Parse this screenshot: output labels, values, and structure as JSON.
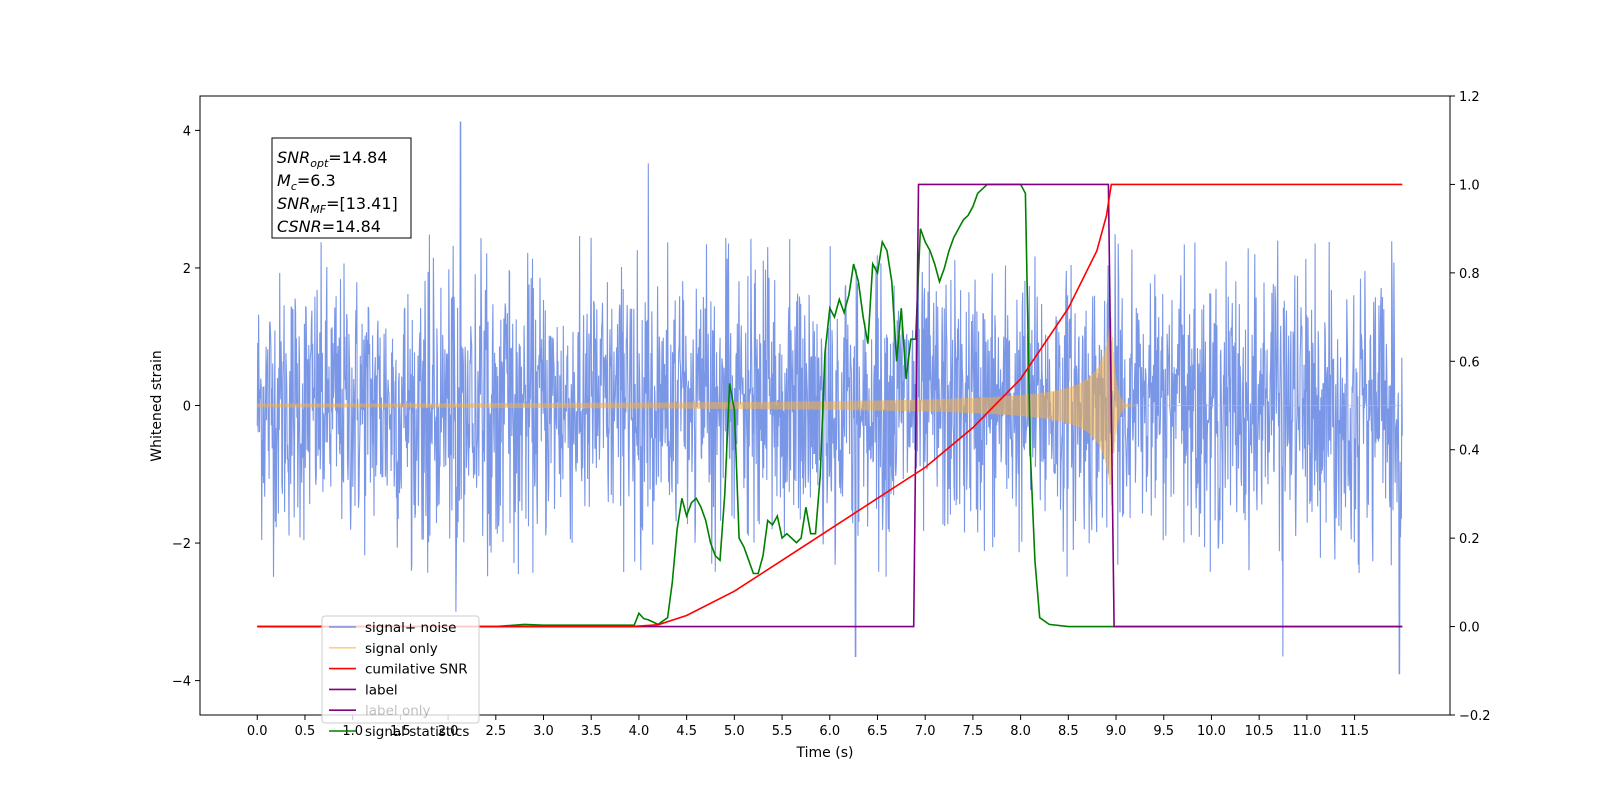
{
  "chart_data": {
    "type": "line",
    "xlabel": "Time (s)",
    "ylabel_left": "Whitened strain",
    "ylabel_right": "",
    "xlim": [
      -0.6,
      12.5
    ],
    "ylim_left": [
      -4.5,
      4.5
    ],
    "ylim_right": [
      -0.2,
      1.2
    ],
    "x_ticks": [
      "0.0",
      "0.5",
      "1.0",
      "1.5",
      "2.0",
      "2.5",
      "3.0",
      "3.5",
      "4.0",
      "4.5",
      "5.0",
      "5.5",
      "6.0",
      "6.5",
      "7.0",
      "7.5",
      "8.0",
      "8.5",
      "9.0",
      "9.5",
      "10.0",
      "10.5",
      "11.0",
      "11.5"
    ],
    "y_left_ticks": [
      "4",
      "2",
      "0",
      "−2",
      "−4"
    ],
    "y_right_ticks": [
      "1.2",
      "1.0",
      "0.8",
      "0.6",
      "0.4",
      "0.2",
      "0.0",
      "−0.2"
    ],
    "grid": false,
    "legend_position": "lower-left",
    "annotation": {
      "lines": [
        {
          "sym": "SNR",
          "sub": "opt",
          "rest": "=14.84"
        },
        {
          "sym": "M",
          "sub": "c",
          "rest": "=6.3"
        },
        {
          "sym": "SNR",
          "sub": "MF",
          "rest": "=[13.41]"
        },
        {
          "sym": "CSNR",
          "sub": "",
          "rest": "=14.84"
        }
      ]
    },
    "series": [
      {
        "name": "signal+ noise",
        "color": "#7390e6",
        "axis": "left",
        "kind": "noise",
        "x_range": [
          0,
          12.0
        ],
        "amplitude_envelope": 2.5,
        "peaks": [
          [
            2.13,
            4.12
          ],
          [
            2.08,
            -3.0
          ],
          [
            4.1,
            3.52
          ],
          [
            6.27,
            -3.65
          ],
          [
            10.75,
            -3.65
          ],
          [
            11.97,
            -3.9
          ]
        ]
      },
      {
        "name": "signal only",
        "color": "#f5b041",
        "axis": "left",
        "kind": "chirp",
        "x_range": [
          0,
          12.0
        ],
        "merger_time": 8.95,
        "peak_amplitude": 1.45
      },
      {
        "name": "cumilative SNR",
        "color": "#ff0000",
        "axis": "right",
        "x": [
          0,
          3.9,
          4.2,
          4.5,
          5.0,
          5.5,
          6.0,
          6.5,
          7.0,
          7.5,
          8.0,
          8.5,
          8.8,
          8.9,
          8.95,
          9.0,
          12.0
        ],
        "y": [
          0,
          0,
          0.004,
          0.025,
          0.08,
          0.15,
          0.22,
          0.29,
          0.36,
          0.45,
          0.56,
          0.72,
          0.85,
          0.93,
          1.0,
          1.0,
          1.0
        ]
      },
      {
        "name": "label",
        "color": "#800080",
        "axis": "right",
        "x": [
          0,
          6.88,
          6.93,
          8.92,
          8.98,
          12.0
        ],
        "y": [
          0,
          0,
          1.0,
          1.0,
          0,
          0
        ]
      },
      {
        "name": "label only",
        "color": "#800080",
        "axis": "right",
        "x": [],
        "y": []
      },
      {
        "name": "signal statistics",
        "color": "#008000",
        "axis": "right",
        "x": [
          0,
          2.5,
          2.8,
          3.0,
          3.5,
          3.95,
          4.0,
          4.05,
          4.1,
          4.2,
          4.3,
          4.35,
          4.4,
          4.45,
          4.5,
          4.55,
          4.6,
          4.65,
          4.7,
          4.75,
          4.8,
          4.85,
          4.9,
          4.95,
          5.0,
          5.05,
          5.1,
          5.15,
          5.2,
          5.25,
          5.3,
          5.35,
          5.4,
          5.45,
          5.5,
          5.55,
          5.6,
          5.65,
          5.7,
          5.75,
          5.8,
          5.85,
          5.9,
          5.95,
          6.0,
          6.05,
          6.1,
          6.15,
          6.2,
          6.25,
          6.3,
          6.35,
          6.4,
          6.45,
          6.5,
          6.55,
          6.6,
          6.65,
          6.7,
          6.75,
          6.8,
          6.85,
          6.9,
          6.95,
          7.0,
          7.05,
          7.1,
          7.15,
          7.2,
          7.25,
          7.3,
          7.35,
          7.4,
          7.45,
          7.5,
          7.55,
          7.6,
          7.65,
          7.7,
          7.75,
          7.8,
          7.85,
          7.9,
          7.95,
          8.0,
          8.05,
          8.1,
          8.15,
          8.2,
          8.3,
          8.5,
          8.8,
          8.9,
          9.0,
          9.05,
          9.1,
          9.15,
          9.2,
          9.3,
          12.0
        ],
        "y": [
          0,
          0,
          0.005,
          0.003,
          0.003,
          0.003,
          0.03,
          0.018,
          0.015,
          0.005,
          0.02,
          0.1,
          0.22,
          0.29,
          0.25,
          0.28,
          0.29,
          0.27,
          0.24,
          0.19,
          0.16,
          0.15,
          0.3,
          0.55,
          0.49,
          0.2,
          0.18,
          0.15,
          0.12,
          0.12,
          0.16,
          0.24,
          0.23,
          0.25,
          0.2,
          0.21,
          0.2,
          0.19,
          0.2,
          0.27,
          0.21,
          0.21,
          0.34,
          0.62,
          0.72,
          0.7,
          0.74,
          0.71,
          0.75,
          0.82,
          0.78,
          0.7,
          0.64,
          0.82,
          0.8,
          0.87,
          0.85,
          0.78,
          0.6,
          0.72,
          0.56,
          0.65,
          0.65,
          0.9,
          0.87,
          0.85,
          0.82,
          0.78,
          0.81,
          0.85,
          0.88,
          0.9,
          0.92,
          0.93,
          0.95,
          0.98,
          0.99,
          1.0,
          1.0,
          1.0,
          1.0,
          1.0,
          1.0,
          1.0,
          1.0,
          0.98,
          0.4,
          0.15,
          0.02,
          0.005,
          0,
          0,
          0,
          0,
          0,
          0,
          0,
          0,
          0,
          0
        ]
      }
    ]
  }
}
